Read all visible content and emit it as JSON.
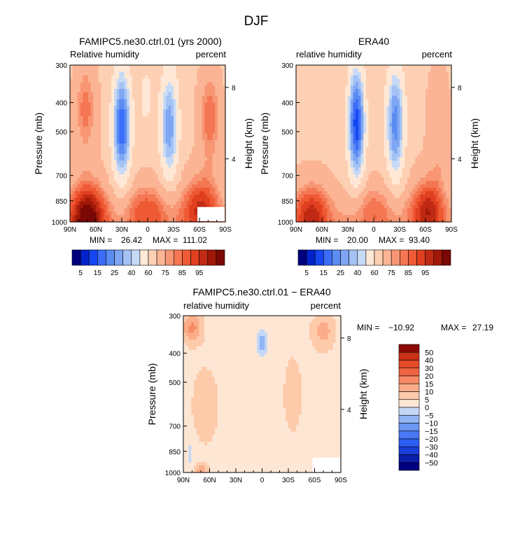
{
  "page": {
    "title": "DJF"
  },
  "colors": {
    "abs": [
      "#00007f",
      "#0022c8",
      "#1546f0",
      "#3c6cfa",
      "#5a8cf2",
      "#7ea6f2",
      "#a4c2f4",
      "#c6daf6",
      "#ffe8d6",
      "#fdd0b4",
      "#fbb494",
      "#f89674",
      "#f47652",
      "#ee5a34",
      "#e04020",
      "#c02a14",
      "#a01808",
      "#7a0804"
    ],
    "diff": [
      "#00007f",
      "#0a1eaa",
      "#1a3ed8",
      "#2c5ef4",
      "#4a78f4",
      "#6a96f4",
      "#92b4f4",
      "#c4d8f6",
      "#fde6d4",
      "#fdcaaa",
      "#fbac88",
      "#f58a64",
      "#ee6440",
      "#e44a28",
      "#c83018",
      "#8c0a04"
    ]
  },
  "chart_data": [
    {
      "type": "heatmap",
      "title": "FAMIPC5.ne30.ctrl.01 (yrs 2000)",
      "variable": "Relative humidity",
      "units": "percent",
      "ylabel": "Pressure (mb)",
      "ylabel_right": "Height (km)",
      "y_ticks": [
        "300",
        "400",
        "500",
        "700",
        "850",
        "1000"
      ],
      "y_tick_values": [
        300,
        400,
        500,
        700,
        850,
        1000
      ],
      "ylim": [
        1000,
        300
      ],
      "y_scale": "log",
      "right_ticks": [
        "8",
        "4"
      ],
      "x_ticks": [
        "90N",
        "60N",
        "30N",
        "0",
        "30S",
        "60S",
        "90S"
      ],
      "xlim": [
        90,
        -90
      ],
      "min_label": "MIN =",
      "min_value": "26.42",
      "max_label": "MAX =",
      "max_value": "111.02",
      "colorbar_labels": [
        "5",
        "15",
        "25",
        "40",
        "60",
        "75",
        "85",
        "95"
      ],
      "scale": "abs",
      "fields": [
        {
          "lat": 70,
          "p": 950,
          "w": 22,
          "h": 0.28,
          "v": 40
        },
        {
          "lat": -62,
          "p": 880,
          "w": 22,
          "h": 0.25,
          "v": 28
        },
        {
          "lat": 0,
          "p": 900,
          "w": 30,
          "h": 0.22,
          "v": 20
        },
        {
          "lat": 72,
          "p": 420,
          "w": 12,
          "h": 0.35,
          "v": 20
        },
        {
          "lat": -72,
          "p": 450,
          "w": 12,
          "h": 0.35,
          "v": 22
        },
        {
          "lat": 30,
          "p": 480,
          "w": 11,
          "h": 0.45,
          "v": -42
        },
        {
          "lat": -25,
          "p": 480,
          "w": 11,
          "h": 0.45,
          "v": -32
        },
        {
          "lat": 2,
          "p": 380,
          "w": 8,
          "h": 0.25,
          "v": -12
        }
      ],
      "base": 58,
      "blank": true
    },
    {
      "type": "heatmap",
      "title": "ERA40",
      "variable": "relative humidity",
      "units": "percent",
      "ylabel": "Pressure (mb)",
      "ylabel_right": "Height (km)",
      "y_ticks": [
        "300",
        "400",
        "500",
        "700",
        "850",
        "1000"
      ],
      "y_tick_values": [
        300,
        400,
        500,
        700,
        850,
        1000
      ],
      "ylim": [
        1000,
        300
      ],
      "y_scale": "log",
      "right_ticks": [
        "8",
        "4"
      ],
      "x_ticks": [
        "90N",
        "60N",
        "30N",
        "0",
        "30S",
        "60S",
        "90S"
      ],
      "xlim": [
        90,
        -90
      ],
      "min_label": "MIN =",
      "min_value": "20.00",
      "max_label": "MAX =",
      "max_value": "93.40",
      "colorbar_labels": [
        "5",
        "15",
        "25",
        "40",
        "60",
        "75",
        "85",
        "95"
      ],
      "scale": "abs",
      "fields": [
        {
          "lat": 72,
          "p": 930,
          "w": 22,
          "h": 0.25,
          "v": 28
        },
        {
          "lat": -62,
          "p": 900,
          "w": 20,
          "h": 0.25,
          "v": 30
        },
        {
          "lat": 0,
          "p": 900,
          "w": 28,
          "h": 0.22,
          "v": 15
        },
        {
          "lat": -75,
          "p": 500,
          "w": 12,
          "h": 0.45,
          "v": 12
        },
        {
          "lat": 20,
          "p": 470,
          "w": 10,
          "h": 0.45,
          "v": -46
        },
        {
          "lat": -25,
          "p": 470,
          "w": 11,
          "h": 0.45,
          "v": -36
        }
      ],
      "base": 58,
      "blank": false
    },
    {
      "type": "heatmap",
      "title": "FAMIPC5.ne30.ctrl.01 − ERA40",
      "variable": "relative humidity",
      "units": "percent",
      "ylabel": "Pressure (mb)",
      "ylabel_right": "Height (km)",
      "y_ticks": [
        "300",
        "400",
        "500",
        "700",
        "850",
        "1000"
      ],
      "y_tick_values": [
        300,
        400,
        500,
        700,
        850,
        1000
      ],
      "ylim": [
        1000,
        300
      ],
      "y_scale": "log",
      "right_ticks": [
        "8",
        "4"
      ],
      "x_ticks": [
        "90N",
        "60N",
        "30N",
        "0",
        "30S",
        "60S",
        "90S"
      ],
      "xlim": [
        90,
        -90
      ],
      "min_label": "MIN =",
      "min_value": "−10.92",
      "max_label": "MAX =",
      "max_value": "27.19",
      "colorbar_labels": [
        "50",
        "40",
        "30",
        "20",
        "15",
        "10",
        "5",
        "0",
        "−5",
        "−10",
        "−15",
        "−20",
        "−30",
        "−40",
        "−50"
      ],
      "scale": "diff",
      "fields": [
        {
          "lat": 80,
          "p": 330,
          "w": 12,
          "h": 0.12,
          "v": 14
        },
        {
          "lat": -70,
          "p": 340,
          "w": 14,
          "h": 0.15,
          "v": 10
        },
        {
          "lat": 65,
          "p": 600,
          "w": 18,
          "h": 0.35,
          "v": 6
        },
        {
          "lat": -35,
          "p": 550,
          "w": 14,
          "h": 0.4,
          "v": 5
        },
        {
          "lat": 0,
          "p": 370,
          "w": 5,
          "h": 0.08,
          "v": -10
        },
        {
          "lat": 82,
          "p": 850,
          "w": 5,
          "h": 0.12,
          "v": -4
        },
        {
          "lat": 70,
          "p": 980,
          "w": 8,
          "h": 0.05,
          "v": 10
        }
      ],
      "base": 2,
      "blank": true
    }
  ]
}
